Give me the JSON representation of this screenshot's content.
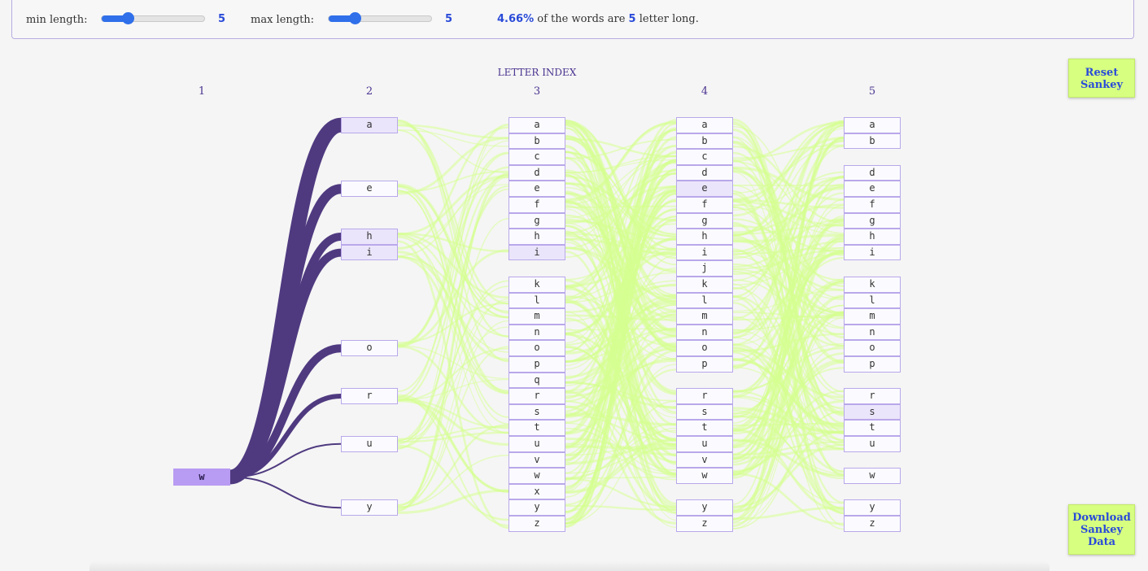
{
  "controls": {
    "min_label": "min length:",
    "min_value": "5",
    "min_fraction": 0.25,
    "max_label": "max length:",
    "max_value": "5",
    "max_fraction": 0.25,
    "summary_pct": "4.66%",
    "summary_mid": "of the words are",
    "summary_len": "5",
    "summary_end": "letter long."
  },
  "axis_title": "LETTER INDEX",
  "column_labels": [
    "1",
    "2",
    "3",
    "4",
    "5"
  ],
  "buttons": {
    "reset": "Reset Sankey",
    "download": "Download Sankey Data"
  },
  "colors": {
    "source_link": "#4f3a80",
    "flow_link": "#d6ff90",
    "node_border": "#b9a8ea",
    "button": "#d7ff80",
    "accent": "#2a4bd8"
  },
  "columns": [
    {
      "index": "1",
      "nodes": [
        "w"
      ],
      "selected": [
        "w"
      ]
    },
    {
      "index": "2",
      "nodes": [
        "a",
        "e",
        "h",
        "i",
        "o",
        "r",
        "u",
        "y"
      ],
      "selected": [
        "a",
        "h",
        "i"
      ]
    },
    {
      "index": "3",
      "nodes": [
        "a",
        "b",
        "c",
        "d",
        "e",
        "f",
        "g",
        "h",
        "i",
        "k",
        "l",
        "m",
        "n",
        "o",
        "p",
        "q",
        "r",
        "s",
        "t",
        "u",
        "v",
        "w",
        "x",
        "y",
        "z"
      ],
      "selected": [
        "i"
      ]
    },
    {
      "index": "4",
      "nodes": [
        "a",
        "b",
        "c",
        "d",
        "e",
        "f",
        "g",
        "h",
        "i",
        "j",
        "k",
        "l",
        "m",
        "n",
        "o",
        "p",
        "r",
        "s",
        "t",
        "u",
        "v",
        "w",
        "y",
        "z"
      ],
      "selected": [
        "e"
      ]
    },
    {
      "index": "5",
      "nodes": [
        "a",
        "b",
        "d",
        "e",
        "f",
        "g",
        "h",
        "i",
        "k",
        "l",
        "m",
        "n",
        "o",
        "p",
        "r",
        "s",
        "t",
        "u",
        "w",
        "y",
        "z"
      ],
      "selected": [
        "s"
      ]
    }
  ]
}
